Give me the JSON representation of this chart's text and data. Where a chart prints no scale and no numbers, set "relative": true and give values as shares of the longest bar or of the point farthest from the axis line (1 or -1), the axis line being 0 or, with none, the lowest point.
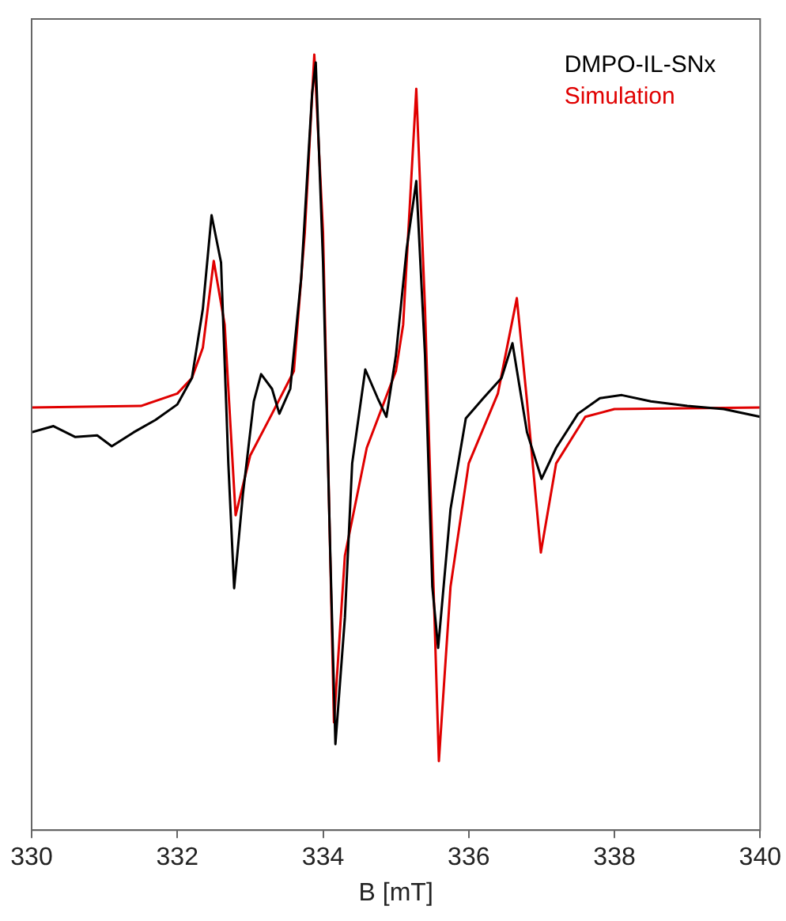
{
  "chart_data": {
    "type": "line",
    "xlabel": "B [mT]",
    "xlim": [
      330,
      340
    ],
    "xticks": [
      330,
      332,
      334,
      336,
      338,
      340
    ],
    "relative": true,
    "grid": false,
    "legend": "top right",
    "marker": "none",
    "line_style": "solid",
    "series": [
      {
        "name": "DMPO-IL-SNx",
        "color": "#000000",
        "x": [
          330,
          330.3,
          330.6,
          330.9,
          331.1,
          331.4,
          331.7,
          332.0,
          332.2,
          332.35,
          332.47,
          332.6,
          332.7,
          332.78,
          332.9,
          333.05,
          333.15,
          333.3,
          333.4,
          333.55,
          333.7,
          333.85,
          333.9,
          334.0,
          334.1,
          334.17,
          334.3,
          334.4,
          334.58,
          334.75,
          334.87,
          335.0,
          335.15,
          335.28,
          335.4,
          335.5,
          335.58,
          335.75,
          335.96,
          336.2,
          336.45,
          336.6,
          336.8,
          337.0,
          337.2,
          337.5,
          337.8,
          338.1,
          338.5,
          339,
          339.5,
          340
        ],
        "values": [
          0.513,
          0.521,
          0.507,
          0.509,
          0.495,
          0.513,
          0.529,
          0.549,
          0.583,
          0.672,
          0.793,
          0.732,
          0.473,
          0.312,
          0.433,
          0.553,
          0.588,
          0.569,
          0.537,
          0.569,
          0.712,
          0.95,
          0.99,
          0.732,
          0.354,
          0.111,
          0.274,
          0.473,
          0.594,
          0.557,
          0.533,
          0.612,
          0.751,
          0.837,
          0.612,
          0.314,
          0.235,
          0.414,
          0.531,
          0.557,
          0.583,
          0.628,
          0.513,
          0.453,
          0.493,
          0.537,
          0.557,
          0.561,
          0.553,
          0.547,
          0.543,
          0.533
        ]
      },
      {
        "name": "Simulation",
        "color": "#e00000",
        "x": [
          330,
          331.5,
          332.0,
          332.2,
          332.35,
          332.5,
          332.65,
          332.8,
          333.0,
          333.3,
          333.6,
          333.75,
          333.88,
          334.0,
          334.15,
          334.3,
          334.6,
          335.0,
          335.1,
          335.28,
          335.4,
          335.59,
          335.75,
          336.0,
          336.4,
          336.66,
          336.8,
          336.99,
          337.2,
          337.6,
          338,
          340
        ],
        "values": [
          0.545,
          0.547,
          0.563,
          0.583,
          0.622,
          0.734,
          0.652,
          0.406,
          0.483,
          0.537,
          0.592,
          0.771,
          1,
          0.771,
          0.139,
          0.354,
          0.493,
          0.592,
          0.652,
          0.956,
          0.672,
          0.089,
          0.314,
          0.473,
          0.563,
          0.686,
          0.553,
          0.358,
          0.473,
          0.533,
          0.543,
          0.545
        ]
      }
    ]
  }
}
